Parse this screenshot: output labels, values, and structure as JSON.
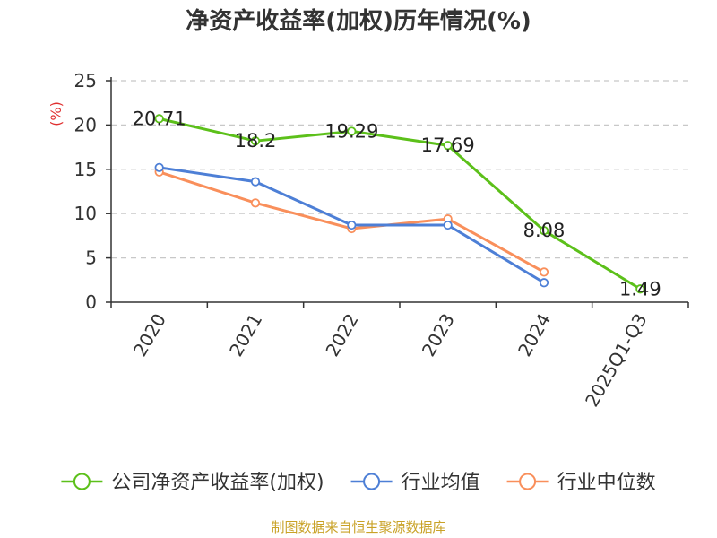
{
  "colors": {
    "roe": "#5cc01a",
    "industry_avg": "#4d7fd6",
    "industry_median": "#f98f5b",
    "axis": "#333333",
    "grid": "#c8c8c8",
    "ylabel": "#e03030",
    "source": "#c9a227"
  },
  "chart_data": {
    "type": "line",
    "title": "净资产收益率(加权)历年情况(%)",
    "xlabel": "",
    "ylabel": "(%)",
    "categories": [
      "2020",
      "2021",
      "2022",
      "2023",
      "2024",
      "2025Q1-Q3"
    ],
    "ylim": [
      0,
      25
    ],
    "yticks": [
      0,
      5,
      10,
      15,
      20,
      25
    ],
    "grid": true,
    "legend_position": "bottom",
    "series": [
      {
        "name": "公司净资产收益率(加权)",
        "color_key": "roe",
        "values": [
          20.71,
          18.2,
          19.29,
          17.69,
          8.08,
          1.49
        ],
        "labels": [
          "20.71",
          "18.2",
          "19.29",
          "17.69",
          "8.08",
          "1.49"
        ]
      },
      {
        "name": "行业均值",
        "color_key": "industry_avg",
        "values": [
          15.2,
          13.6,
          8.7,
          8.7,
          2.2,
          null
        ]
      },
      {
        "name": "行业中位数",
        "color_key": "industry_median",
        "values": [
          14.7,
          11.2,
          8.3,
          9.4,
          3.4,
          null
        ]
      }
    ],
    "source_note": "制图数据来自恒生聚源数据库"
  }
}
